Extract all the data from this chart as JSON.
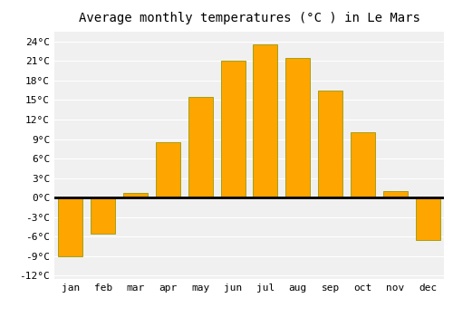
{
  "title": "Average monthly temperatures (°C ) in Le Mars",
  "months": [
    "Jan",
    "Feb",
    "Mar",
    "Apr",
    "May",
    "Jun",
    "Jul",
    "Aug",
    "Sep",
    "Oct",
    "Nov",
    "Dec"
  ],
  "values": [
    -9,
    -5.5,
    0.7,
    8.5,
    15.5,
    21,
    23.5,
    21.5,
    16.5,
    10,
    1,
    -6.5
  ],
  "bar_color": "#FFA500",
  "bar_edge_color": "#999900",
  "ylim": [
    -12.5,
    25.5
  ],
  "yticks": [
    -12,
    -9,
    -6,
    -3,
    0,
    3,
    6,
    9,
    12,
    15,
    18,
    21,
    24
  ],
  "ytick_labels": [
    "-12°C",
    "-9°C",
    "-6°C",
    "-3°C",
    "0°C",
    "3°C",
    "6°C",
    "9°C",
    "12°C",
    "15°C",
    "18°C",
    "21°C",
    "24°C"
  ],
  "fig_background_color": "#ffffff",
  "plot_background_color": "#f0f0f0",
  "grid_color": "#ffffff",
  "zero_line_color": "#000000",
  "title_fontsize": 10,
  "tick_fontsize": 8,
  "font_family": "monospace"
}
